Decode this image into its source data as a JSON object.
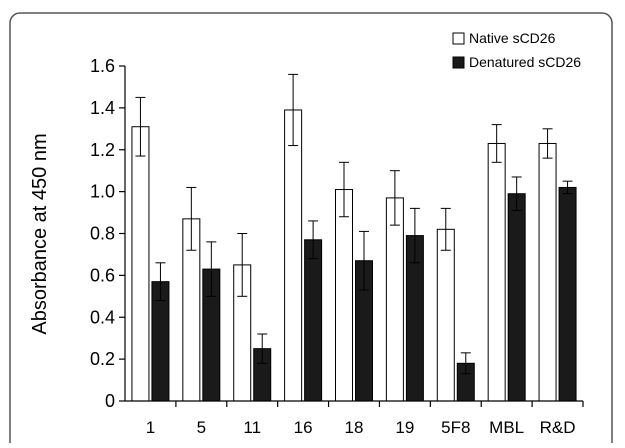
{
  "chart_data": {
    "type": "bar",
    "ylabel": "Absorbance at 450 nm",
    "xlabel": "",
    "ylim": [
      0,
      1.6
    ],
    "yticks": [
      "0",
      "0.2",
      "0.4",
      "0.6",
      "0.8",
      "1.0",
      "1.2",
      "1.4",
      "1.6"
    ],
    "categories": [
      "1",
      "5",
      "11",
      "16",
      "18",
      "19",
      "5F8",
      "MBL",
      "R&D"
    ],
    "legend_position": "top-right",
    "grid": false,
    "series": [
      {
        "name": "Native sCD26",
        "color": "#ffffff",
        "values": [
          1.31,
          0.87,
          0.65,
          1.39,
          1.01,
          0.97,
          0.82,
          1.23,
          1.23
        ],
        "errors": [
          0.14,
          0.15,
          0.15,
          0.17,
          0.13,
          0.13,
          0.1,
          0.09,
          0.07
        ]
      },
      {
        "name": "Denatured sCD26",
        "color": "#1a1a1a",
        "values": [
          0.57,
          0.63,
          0.25,
          0.77,
          0.67,
          0.79,
          0.18,
          0.99,
          1.02
        ],
        "errors": [
          0.09,
          0.13,
          0.07,
          0.09,
          0.14,
          0.13,
          0.05,
          0.08,
          0.03
        ]
      }
    ]
  }
}
